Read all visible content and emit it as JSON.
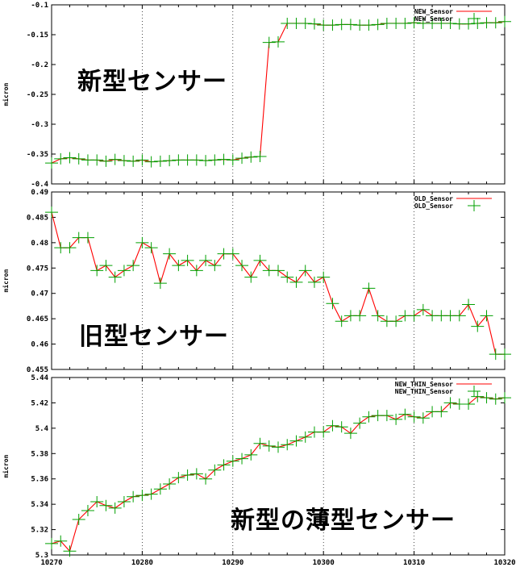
{
  "chart_data": [
    {
      "type": "line",
      "ylabel": "micron",
      "ylim": [
        -0.4,
        -0.1
      ],
      "yticks": [
        "-0.1",
        "-0.15",
        "-0.2",
        "-0.25",
        "-0.3",
        "-0.35",
        "-0.4"
      ],
      "xlim": [
        10270,
        10320
      ],
      "xticks": [],
      "grid": "x-dotted",
      "legend_placement": "top-right",
      "annotation": "新型センサー",
      "series": [
        {
          "name": "NEW_Sensor",
          "style": "line",
          "color": "#ff0000"
        },
        {
          "name": "NEW_Sensor",
          "style": "points",
          "color": "#00a000"
        }
      ],
      "x": [
        10270,
        10271,
        10272,
        10273,
        10274,
        10275,
        10276,
        10277,
        10278,
        10279,
        10280,
        10281,
        10282,
        10283,
        10284,
        10285,
        10286,
        10287,
        10288,
        10289,
        10290,
        10291,
        10292,
        10293,
        10294,
        10295,
        10296,
        10297,
        10298,
        10299,
        10300,
        10301,
        10302,
        10303,
        10304,
        10305,
        10306,
        10307,
        10308,
        10309,
        10310,
        10311,
        10312,
        10313,
        10314,
        10315,
        10316,
        10317,
        10318,
        10319,
        10320
      ],
      "y": [
        -0.365,
        -0.358,
        -0.356,
        -0.358,
        -0.36,
        -0.36,
        -0.362,
        -0.359,
        -0.361,
        -0.362,
        -0.36,
        -0.363,
        -0.362,
        -0.361,
        -0.36,
        -0.36,
        -0.36,
        -0.361,
        -0.36,
        -0.359,
        -0.36,
        -0.357,
        -0.355,
        -0.354,
        -0.163,
        -0.162,
        -0.131,
        -0.131,
        -0.131,
        -0.132,
        -0.134,
        -0.134,
        -0.133,
        -0.133,
        -0.134,
        -0.134,
        -0.133,
        -0.131,
        -0.131,
        -0.131,
        -0.13,
        -0.131,
        -0.131,
        -0.131,
        -0.131,
        -0.132,
        -0.132,
        -0.131,
        -0.13,
        -0.13,
        -0.128
      ]
    },
    {
      "type": "line",
      "ylabel": "micron",
      "ylim": [
        0.455,
        0.49
      ],
      "yticks": [
        "0.49",
        "0.485",
        "0.48",
        "0.475",
        "0.47",
        "0.465",
        "0.46",
        "0.455"
      ],
      "xlim": [
        10270,
        10320
      ],
      "xticks": [],
      "grid": "x-dotted",
      "legend_placement": "top-right",
      "annotation": "旧型センサー",
      "series": [
        {
          "name": "OLD_Sensor",
          "style": "line",
          "color": "#ff0000"
        },
        {
          "name": "OLD_Sensor",
          "style": "points",
          "color": "#00a000"
        }
      ],
      "x": [
        10270,
        10271,
        10272,
        10273,
        10274,
        10275,
        10276,
        10277,
        10278,
        10279,
        10280,
        10281,
        10282,
        10283,
        10284,
        10285,
        10286,
        10287,
        10288,
        10289,
        10290,
        10291,
        10292,
        10293,
        10294,
        10295,
        10296,
        10297,
        10298,
        10299,
        10300,
        10301,
        10302,
        10303,
        10304,
        10305,
        10306,
        10307,
        10308,
        10309,
        10310,
        10311,
        10312,
        10313,
        10314,
        10315,
        10316,
        10317,
        10318,
        10319,
        10320
      ],
      "y": [
        0.486,
        0.479,
        0.479,
        0.481,
        0.481,
        0.4745,
        0.4755,
        0.4732,
        0.4745,
        0.4755,
        0.48,
        0.479,
        0.472,
        0.4778,
        0.4755,
        0.4765,
        0.4745,
        0.4765,
        0.4755,
        0.4778,
        0.4778,
        0.4755,
        0.4732,
        0.4765,
        0.4745,
        0.4745,
        0.4732,
        0.4722,
        0.4745,
        0.4722,
        0.4732,
        0.468,
        0.4645,
        0.4656,
        0.4656,
        0.471,
        0.4656,
        0.4645,
        0.4645,
        0.4656,
        0.4656,
        0.4668,
        0.4656,
        0.4656,
        0.4656,
        0.4656,
        0.4678,
        0.4635,
        0.4656,
        0.458,
        0.458
      ]
    },
    {
      "type": "line",
      "ylabel": "micron",
      "ylim": [
        5.3,
        5.44
      ],
      "yticks": [
        "5.44",
        "5.42",
        "5.4",
        "5.38",
        "5.36",
        "5.34",
        "5.32",
        "5.3"
      ],
      "xlim": [
        10270,
        10320
      ],
      "xticks": [
        "10270",
        "10280",
        "10290",
        "10300",
        "10310",
        "10320"
      ],
      "grid": "x-dotted",
      "legend_placement": "top-right",
      "annotation": "新型の薄型センサー",
      "series": [
        {
          "name": "NEW_THIN_Sensor",
          "style": "line",
          "color": "#ff0000"
        },
        {
          "name": "NEW_THIN_Sensor",
          "style": "points",
          "color": "#00a000"
        }
      ],
      "x": [
        10270,
        10271,
        10272,
        10273,
        10274,
        10275,
        10276,
        10277,
        10278,
        10279,
        10280,
        10281,
        10282,
        10283,
        10284,
        10285,
        10286,
        10287,
        10288,
        10289,
        10290,
        10291,
        10292,
        10293,
        10294,
        10295,
        10296,
        10297,
        10298,
        10299,
        10300,
        10301,
        10302,
        10303,
        10304,
        10305,
        10306,
        10307,
        10308,
        10309,
        10310,
        10311,
        10312,
        10313,
        10314,
        10315,
        10316,
        10317,
        10318,
        10319,
        10320
      ],
      "y": [
        5.309,
        5.311,
        5.303,
        5.328,
        5.335,
        5.342,
        5.339,
        5.337,
        5.342,
        5.346,
        5.347,
        5.348,
        5.352,
        5.356,
        5.361,
        5.363,
        5.364,
        5.36,
        5.367,
        5.371,
        5.374,
        5.376,
        5.379,
        5.388,
        5.386,
        5.385,
        5.387,
        5.39,
        5.393,
        5.397,
        5.397,
        5.402,
        5.401,
        5.396,
        5.404,
        5.409,
        5.41,
        5.41,
        5.407,
        5.411,
        5.409,
        5.408,
        5.413,
        5.413,
        5.42,
        5.419,
        5.419,
        5.425,
        5.424,
        5.423,
        5.424
      ]
    }
  ]
}
